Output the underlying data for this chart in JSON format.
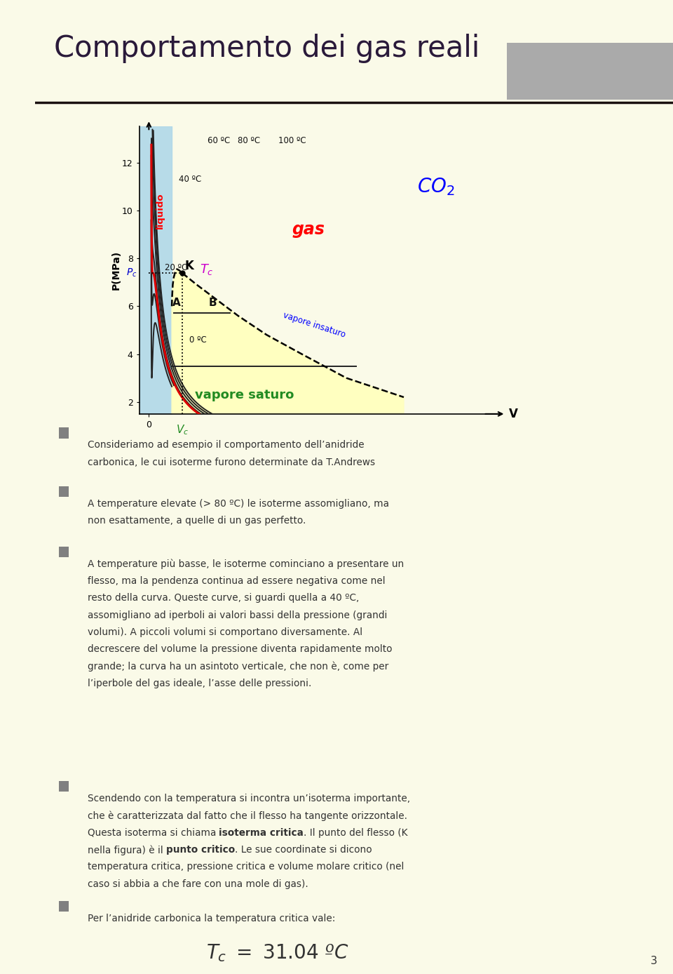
{
  "title": "Comportamento dei gas reali",
  "bg_color": "#FAFAE8",
  "sidebar_color": "#B8B870",
  "header_bar_color": "#1a1010",
  "gray_rect_color": "#AAAAAA",
  "plot_bg": "#FAFAE8",
  "liquid_bg": "#B0D8E8",
  "yellow_bg": "#FFFFC0",
  "ylabel": "P(MPa)",
  "xlabel": "V",
  "yticks": [
    2,
    4,
    6,
    8,
    10,
    12
  ],
  "Pc_value": 7.38,
  "Vc_value": 1.05,
  "bullet_color": "#808080",
  "text_color": "#333333",
  "green_text": "#228B22",
  "blue_text": "#0000CC",
  "red_text": "#CC0000",
  "magenta_text": "#CC00CC",
  "page_number": "3",
  "bullet_texts": [
    "Consideriamo ad esempio il comportamento dell’anidride carbonica, le cui isoterme furono determinate da T.Andrews",
    "A temperature elevate (> 80 ºC) le isoterme assomigliano, ma non esattamente, a quelle di un gas perfetto.",
    "A temperature più basse, le isoterme cominciano a presentare un flesso, ma la pendenza continua ad essere negativa come nel resto della curva. Queste curve, si guardi quella a 40 ºC, assomigliano ad iperboli ai valori bassi della pressione (grandi volumi). A piccoli volumi si comportano diversamente. Al decrescere del volume la pressione diventa rapidamente molto grande; la curva ha un asintoto verticale, che non è, come per l’iperbole del gas ideale, l’asse delle pressioni.",
    "Scendendo con la temperatura si incontra un’isoterma importante, che è caratterizzata dal fatto che il flesso ha tangente orizzontale. Questa isoterma si chiama |isoterma critica|. Il punto del flesso (K nella figura) è il |punto critico|. Le sue coordinate si dicono temperatura critica, pressione critica e volume molare critico (nel caso si abbia a che fare con una mole di gas).",
    "Per l’anidride carbonica la temperatura critica vale:"
  ]
}
